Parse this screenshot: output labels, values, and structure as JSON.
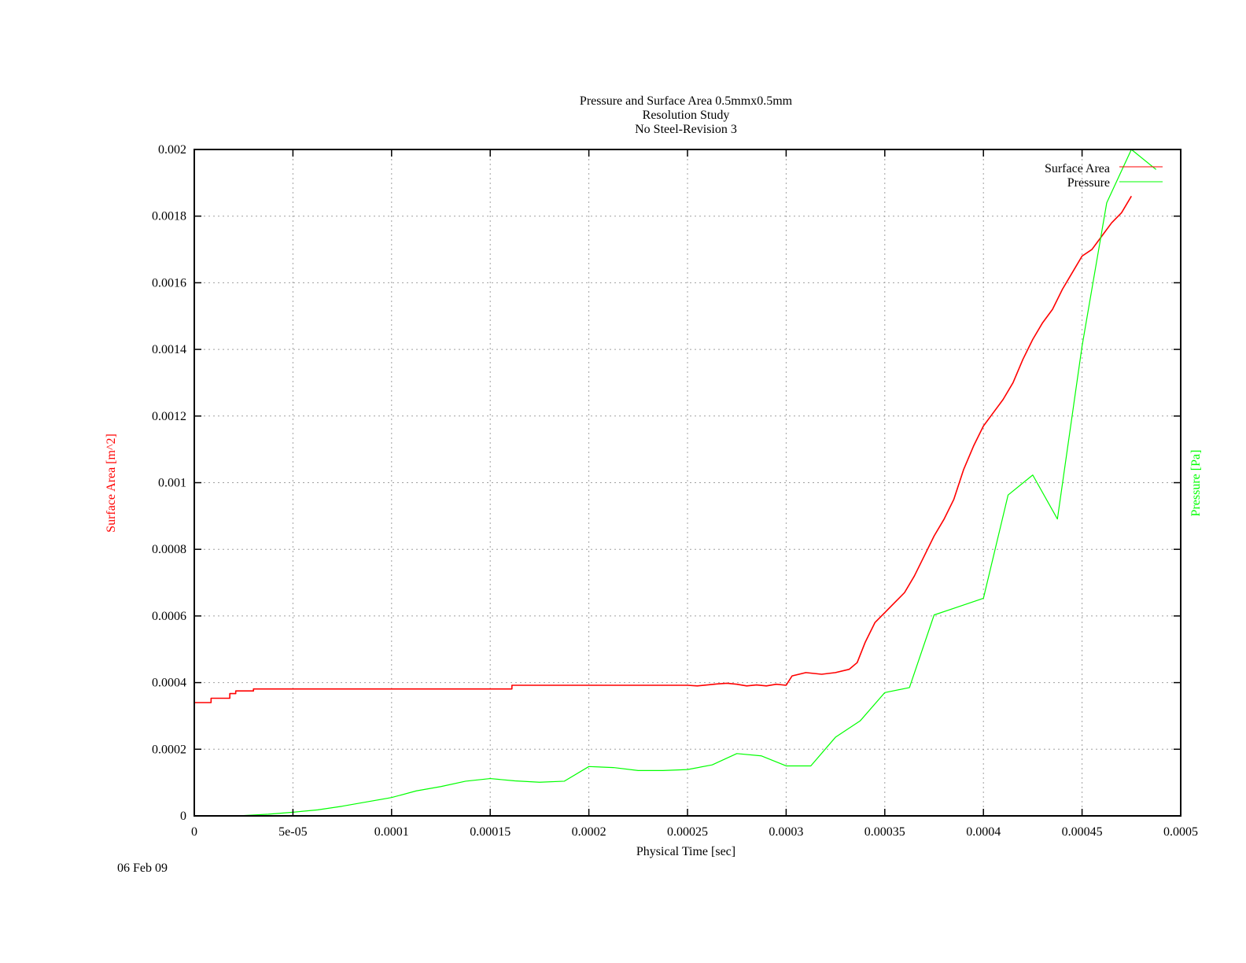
{
  "chart_data": {
    "type": "line",
    "title_lines": [
      "Pressure and Surface Area 0.5mmx0.5mm",
      "Resolution Study",
      "No Steel-Revision 3"
    ],
    "xlabel": "Physical Time [sec]",
    "ylabel": "Surface Area [m^2]",
    "y2label": "Pressure [Pa]",
    "xlim": [
      0,
      0.0005
    ],
    "ylim": [
      0,
      0.002
    ],
    "xticks": [
      "0",
      "5e-05",
      "0.0001",
      "0.00015",
      "0.0002",
      "0.00025",
      "0.0003",
      "0.00035",
      "0.0004",
      "0.00045",
      "0.0005"
    ],
    "yticks": [
      "0",
      "0.0002",
      "0.0004",
      "0.0006",
      "0.0008",
      "0.001",
      "0.0012",
      "0.0014",
      "0.0016",
      "0.0018",
      "0.002"
    ],
    "grid": true,
    "legend_position": "top-right",
    "date_stamp": "06 Feb 09",
    "series": [
      {
        "name": "Surface Area",
        "color": "#ff0000",
        "x": [
          0,
          8.5e-06,
          8.5e-06,
          1.8e-05,
          1.8e-05,
          2.1e-05,
          2.1e-05,
          3e-05,
          3e-05,
          0.000161,
          0.000161,
          0.00025,
          0.000255,
          0.00026,
          0.000265,
          0.00027,
          0.000275,
          0.00028,
          0.000285,
          0.00029,
          0.000295,
          0.0003,
          0.000303,
          0.00031,
          0.000318,
          0.000325,
          0.000332,
          0.000336,
          0.00034,
          0.000345,
          0.00035,
          0.000355,
          0.00036,
          0.000365,
          0.00037,
          0.000375,
          0.00038,
          0.000385,
          0.00039,
          0.000395,
          0.0004,
          0.000405,
          0.00041,
          0.000415,
          0.00042,
          0.000425,
          0.00043,
          0.000435,
          0.00044,
          0.000445,
          0.00045,
          0.000455,
          0.00046,
          0.000465,
          0.00047,
          0.000475
        ],
        "y": [
          0.00034,
          0.00034,
          0.000353,
          0.000353,
          0.000367,
          0.000367,
          0.000375,
          0.000375,
          0.000381,
          0.000381,
          0.000392,
          0.000392,
          0.00039,
          0.000393,
          0.000396,
          0.000398,
          0.000395,
          0.00039,
          0.000393,
          0.00039,
          0.000395,
          0.000392,
          0.00042,
          0.00043,
          0.000425,
          0.00043,
          0.00044,
          0.00046,
          0.00052,
          0.00058,
          0.00061,
          0.00064,
          0.00067,
          0.00072,
          0.00078,
          0.00084,
          0.00089,
          0.00095,
          0.00104,
          0.00111,
          0.00117,
          0.00121,
          0.00125,
          0.0013,
          0.00137,
          0.00143,
          0.00148,
          0.00152,
          0.00158,
          0.00163,
          0.00168,
          0.0017,
          0.00174,
          0.00178,
          0.00181,
          0.00186
        ]
      },
      {
        "name": "Pressure",
        "color": "#00ff00",
        "x": [
          0,
          2.5e-05,
          3.75e-05,
          5e-05,
          6.25e-05,
          7.5e-05,
          8.75e-05,
          0.0001,
          0.0001125,
          0.000125,
          0.0001375,
          0.00015,
          0.0001625,
          0.000175,
          0.0001875,
          0.0002,
          0.0002125,
          0.000225,
          0.0002375,
          0.00025,
          0.0002625,
          0.000275,
          0.0002875,
          0.0003,
          0.0003125,
          0.000325,
          0.0003375,
          0.00035,
          0.0003625,
          0.000375,
          0.0003875,
          0.0004,
          0.0004125,
          0.000425,
          0.0004375,
          0.00045,
          0.0004625,
          0.000475,
          0.0004875
        ],
        "y": [
          0,
          1e-06,
          5e-06,
          1.1e-05,
          1.8e-05,
          2.9e-05,
          4.2e-05,
          5.5e-05,
          7.5e-05,
          8.8e-05,
          0.000104,
          0.000112,
          0.000105,
          0.000101,
          0.000104,
          0.000148,
          0.000145,
          0.000136,
          0.000136,
          0.000139,
          0.000153,
          0.000187,
          0.00018,
          0.00015,
          0.00015,
          0.000236,
          0.000285,
          0.00037,
          0.000385,
          0.000603,
          0.000628,
          0.000653,
          0.000963,
          0.001023,
          0.000891,
          0.00141,
          0.00184,
          0.002,
          0.00194
        ]
      }
    ]
  }
}
